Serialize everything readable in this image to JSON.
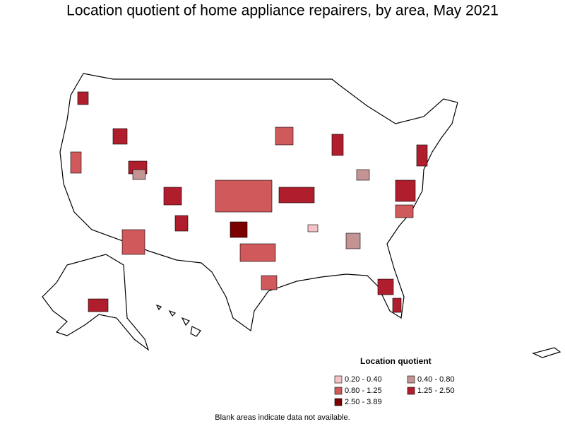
{
  "title": "Location quotient of home appliance repairers, by area, May 2021",
  "legend": {
    "title": "Location quotient",
    "items": [
      {
        "label": "0.20 - 0.40",
        "color": "#f5c4c6"
      },
      {
        "label": "0.40 - 0.80",
        "color": "#c49393"
      },
      {
        "label": "0.80 - 1.25",
        "color": "#d0595c"
      },
      {
        "label": "1.25 - 2.50",
        "color": "#b01e2d"
      },
      {
        "label": "2.50 - 3.89",
        "color": "#7b0000"
      }
    ]
  },
  "note": "Blank areas indicate data not available."
}
